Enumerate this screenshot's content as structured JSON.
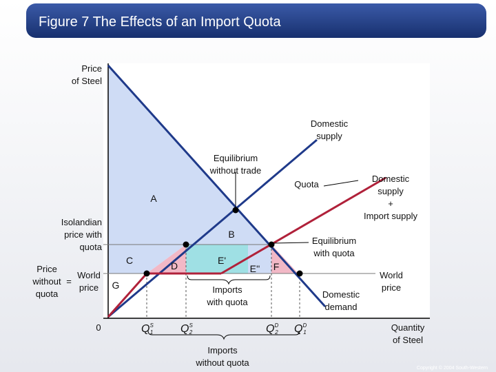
{
  "header": {
    "title": "Figure 7 The Effects of an Import Quota"
  },
  "axes": {
    "y_label": [
      "Price",
      "of Steel"
    ],
    "x_label": [
      "Quantity",
      "of Steel"
    ],
    "origin": "0"
  },
  "price_labels": {
    "with_quota": [
      "Isolandian",
      "price with",
      "quota"
    ],
    "without_quota": [
      "Price",
      "without",
      "quota"
    ],
    "equals": "=",
    "world_price": [
      "World",
      "price"
    ]
  },
  "regions": [
    "A",
    "B",
    "C",
    "D",
    "E'",
    "E''",
    "F",
    "G"
  ],
  "quantity_labels": [
    {
      "symbol": "Q",
      "superscript": "S",
      "subscript": "1"
    },
    {
      "symbol": "Q",
      "superscript": "S",
      "subscript": "2"
    },
    {
      "symbol": "Q",
      "superscript": "D",
      "subscript": "2"
    },
    {
      "symbol": "Q",
      "superscript": "D",
      "subscript": "1"
    }
  ],
  "annotations": {
    "domestic_supply": [
      "Domestic",
      "supply"
    ],
    "equilibrium_without_trade": [
      "Equilibrium",
      "without trade"
    ],
    "quota": "Quota",
    "supply_plus_imports": [
      "Domestic",
      "supply",
      "+",
      "Import supply"
    ],
    "equilibrium_with_quota": [
      "Equilibrium",
      "with quota"
    ],
    "imports_with_quota": [
      "Imports",
      "with quota"
    ],
    "domestic_demand": [
      "Domestic",
      "demand"
    ],
    "world_price": [
      "World",
      "price"
    ],
    "imports_without_quota": [
      "Imports",
      "without quota"
    ]
  },
  "footer": {
    "copyright": "Copyright © 2004 South-Western"
  }
}
